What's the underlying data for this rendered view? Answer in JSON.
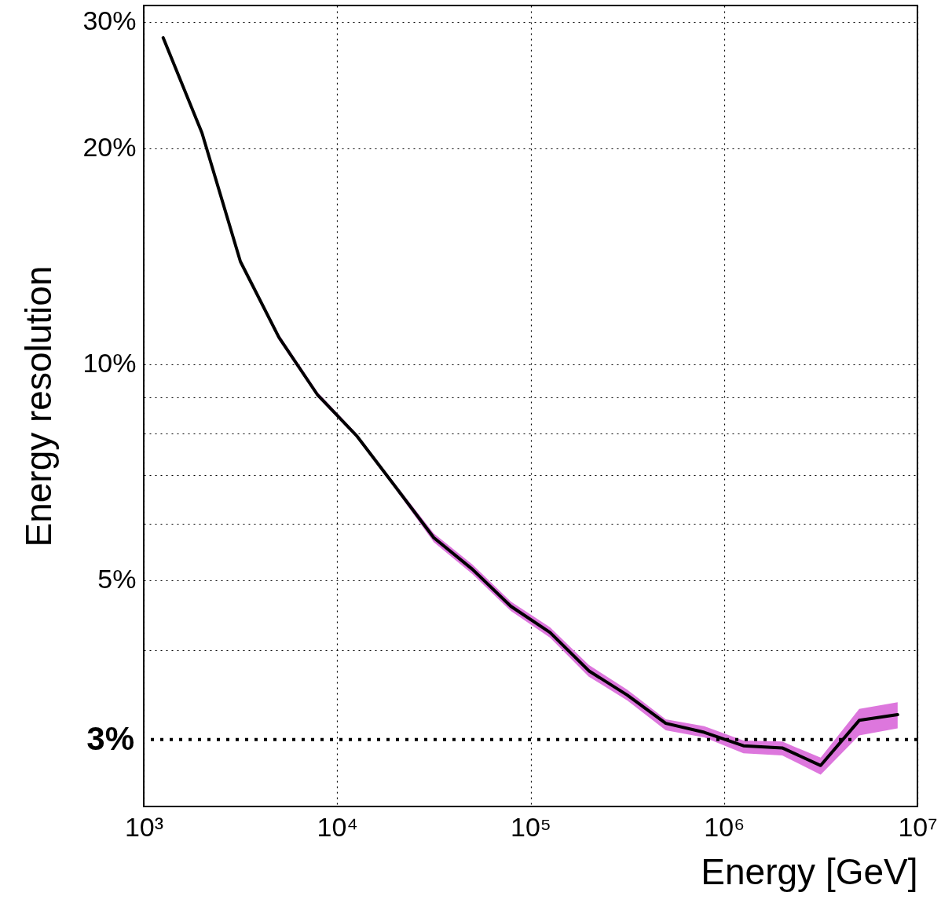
{
  "chart_data": {
    "type": "line",
    "xlabel": "Energy [GeV]",
    "ylabel": "Energy resolution",
    "x": [
      1260,
      2000,
      3160,
      5000,
      7900,
      12600,
      20000,
      31600,
      50000,
      79000,
      126000,
      200000,
      316000,
      500000,
      790000,
      1260000,
      2000000,
      3160000,
      5000000,
      7900000
    ],
    "series": [
      {
        "color": "#000000",
        "values": [
          28.5,
          21.0,
          13.9,
          10.9,
          9.07,
          7.95,
          6.75,
          5.73,
          5.18,
          4.6,
          4.23,
          3.74,
          3.46,
          3.16,
          3.07,
          2.94,
          2.92,
          2.76,
          3.19,
          3.25
        ],
        "lower": [
          28.3,
          20.9,
          13.8,
          10.8,
          9.0,
          7.9,
          6.7,
          5.65,
          5.1,
          4.53,
          4.16,
          3.67,
          3.4,
          3.09,
          3.02,
          2.87,
          2.85,
          2.68,
          3.04,
          3.11
        ],
        "upper": [
          28.7,
          21.1,
          14.0,
          11.0,
          9.15,
          8.0,
          6.8,
          5.81,
          5.26,
          4.67,
          4.3,
          3.81,
          3.52,
          3.2,
          3.13,
          2.99,
          2.98,
          2.83,
          3.31,
          3.38
        ]
      }
    ],
    "log": "xy",
    "xlim": [
      1000,
      10000000
    ],
    "ylim": [
      2.42,
      31.6
    ],
    "xticks": [
      {
        "value": 1000,
        "label": "10³"
      },
      {
        "value": 10000,
        "label": "10⁴"
      },
      {
        "value": 100000,
        "label": "10⁵"
      },
      {
        "value": 1000000,
        "label": "10⁶"
      },
      {
        "value": 10000000,
        "label": "10⁷"
      }
    ],
    "yticks": [
      {
        "value": 4,
        "label": null
      },
      {
        "value": 5,
        "label": "5%"
      },
      {
        "value": 6,
        "label": null
      },
      {
        "value": 7,
        "label": null
      },
      {
        "value": 8,
        "label": null
      },
      {
        "value": 9,
        "label": null
      },
      {
        "value": 10,
        "label": "10%"
      },
      {
        "value": 20,
        "label": "20%"
      },
      {
        "value": 30,
        "label": "30%"
      }
    ],
    "ref_lines": [
      {
        "axis": "y",
        "value": 3,
        "label": "3%",
        "line_style": "dotted",
        "color": "#000000"
      }
    ],
    "grid": true,
    "line_style": "solid",
    "marker": "none"
  }
}
